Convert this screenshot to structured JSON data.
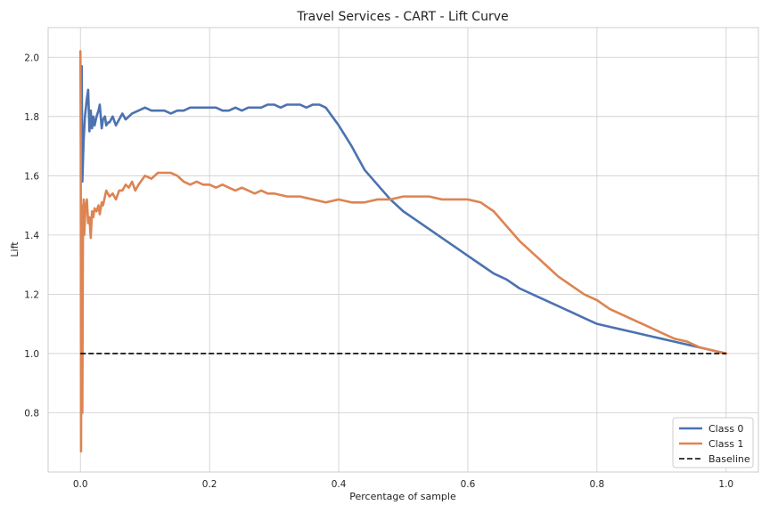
{
  "chart_data": {
    "type": "line",
    "title": "Travel Services - CART - Lift Curve",
    "xlabel": "Percentage of sample",
    "ylabel": "Lift",
    "xlim": [
      -0.05,
      1.05
    ],
    "ylim": [
      0.6,
      2.1
    ],
    "xticks": [
      "0.0",
      "0.2",
      "0.4",
      "0.6",
      "0.8",
      "1.0"
    ],
    "yticks": [
      "0.8",
      "1.0",
      "1.2",
      "1.4",
      "1.6",
      "1.8",
      "2.0"
    ],
    "grid": true,
    "legend_position": "lower-right",
    "series": [
      {
        "name": "Class 0",
        "color": "#4c72b0",
        "x": [
          0.002,
          0.003,
          0.005,
          0.007,
          0.01,
          0.012,
          0.014,
          0.016,
          0.018,
          0.02,
          0.022,
          0.025,
          0.028,
          0.03,
          0.033,
          0.035,
          0.038,
          0.04,
          0.043,
          0.045,
          0.05,
          0.055,
          0.06,
          0.065,
          0.07,
          0.08,
          0.09,
          0.1,
          0.11,
          0.12,
          0.13,
          0.14,
          0.15,
          0.16,
          0.17,
          0.18,
          0.19,
          0.2,
          0.21,
          0.22,
          0.23,
          0.24,
          0.25,
          0.26,
          0.27,
          0.28,
          0.29,
          0.3,
          0.31,
          0.32,
          0.33,
          0.34,
          0.35,
          0.36,
          0.37,
          0.38,
          0.39,
          0.4,
          0.42,
          0.44,
          0.46,
          0.48,
          0.5,
          0.52,
          0.54,
          0.56,
          0.58,
          0.6,
          0.62,
          0.64,
          0.66,
          0.68,
          0.7,
          0.72,
          0.74,
          0.76,
          0.78,
          0.8,
          0.82,
          0.84,
          0.86,
          0.88,
          0.9,
          0.92,
          0.94,
          0.96,
          0.98,
          1.0
        ],
        "y": [
          1.97,
          1.58,
          1.72,
          1.8,
          1.86,
          1.89,
          1.75,
          1.82,
          1.76,
          1.8,
          1.77,
          1.8,
          1.82,
          1.84,
          1.76,
          1.79,
          1.8,
          1.77,
          1.78,
          1.78,
          1.8,
          1.77,
          1.79,
          1.81,
          1.79,
          1.81,
          1.82,
          1.83,
          1.82,
          1.82,
          1.82,
          1.81,
          1.82,
          1.82,
          1.83,
          1.83,
          1.83,
          1.83,
          1.83,
          1.82,
          1.82,
          1.83,
          1.82,
          1.83,
          1.83,
          1.83,
          1.84,
          1.84,
          1.83,
          1.84,
          1.84,
          1.84,
          1.83,
          1.84,
          1.84,
          1.83,
          1.8,
          1.77,
          1.7,
          1.62,
          1.57,
          1.52,
          1.48,
          1.45,
          1.42,
          1.39,
          1.36,
          1.33,
          1.3,
          1.27,
          1.25,
          1.22,
          1.2,
          1.18,
          1.16,
          1.14,
          1.12,
          1.1,
          1.09,
          1.08,
          1.07,
          1.06,
          1.05,
          1.04,
          1.03,
          1.02,
          1.01,
          1.0
        ]
      },
      {
        "name": "Class 1",
        "color": "#dd8452",
        "x": [
          0.0,
          0.0005,
          0.001,
          0.0015,
          0.002,
          0.003,
          0.004,
          0.005,
          0.006,
          0.008,
          0.01,
          0.012,
          0.014,
          0.016,
          0.018,
          0.02,
          0.022,
          0.025,
          0.028,
          0.03,
          0.033,
          0.035,
          0.038,
          0.04,
          0.045,
          0.05,
          0.055,
          0.06,
          0.065,
          0.07,
          0.075,
          0.08,
          0.085,
          0.09,
          0.1,
          0.11,
          0.12,
          0.13,
          0.14,
          0.15,
          0.16,
          0.17,
          0.18,
          0.19,
          0.2,
          0.21,
          0.22,
          0.23,
          0.24,
          0.25,
          0.26,
          0.27,
          0.28,
          0.29,
          0.3,
          0.32,
          0.34,
          0.36,
          0.38,
          0.4,
          0.42,
          0.44,
          0.46,
          0.48,
          0.5,
          0.52,
          0.54,
          0.56,
          0.58,
          0.6,
          0.62,
          0.64,
          0.66,
          0.68,
          0.7,
          0.72,
          0.74,
          0.76,
          0.78,
          0.8,
          0.82,
          0.84,
          0.86,
          0.88,
          0.9,
          0.92,
          0.94,
          0.96,
          0.98,
          1.0
        ],
        "y": [
          2.02,
          1.7,
          0.67,
          1.35,
          1.5,
          0.8,
          1.45,
          1.52,
          1.4,
          1.5,
          1.52,
          1.44,
          1.46,
          1.39,
          1.48,
          1.46,
          1.49,
          1.48,
          1.5,
          1.47,
          1.51,
          1.5,
          1.53,
          1.55,
          1.53,
          1.54,
          1.52,
          1.55,
          1.55,
          1.57,
          1.56,
          1.58,
          1.55,
          1.57,
          1.6,
          1.59,
          1.61,
          1.61,
          1.61,
          1.6,
          1.58,
          1.57,
          1.58,
          1.57,
          1.57,
          1.56,
          1.57,
          1.56,
          1.55,
          1.56,
          1.55,
          1.54,
          1.55,
          1.54,
          1.54,
          1.53,
          1.53,
          1.52,
          1.51,
          1.52,
          1.51,
          1.51,
          1.52,
          1.52,
          1.53,
          1.53,
          1.53,
          1.52,
          1.52,
          1.52,
          1.51,
          1.48,
          1.43,
          1.38,
          1.34,
          1.3,
          1.26,
          1.23,
          1.2,
          1.18,
          1.15,
          1.13,
          1.11,
          1.09,
          1.07,
          1.05,
          1.04,
          1.02,
          1.01,
          1.0
        ]
      },
      {
        "name": "Baseline",
        "color": "#000000",
        "style": "dashed",
        "x": [
          0.0,
          1.0
        ],
        "y": [
          1.0,
          1.0
        ]
      }
    ]
  }
}
